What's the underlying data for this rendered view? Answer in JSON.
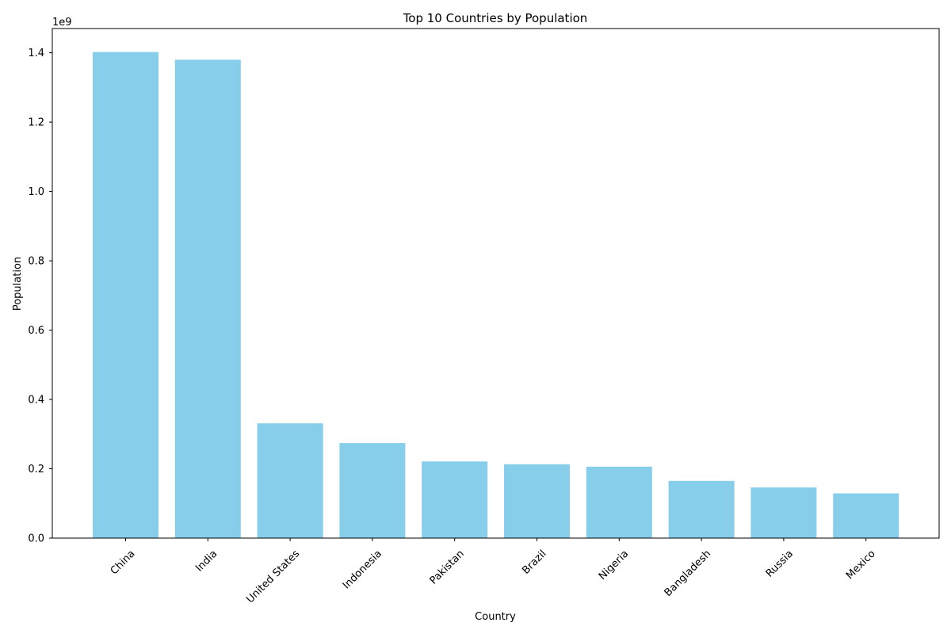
{
  "chart_data": {
    "type": "bar",
    "title": "Top 10 Countries by Population",
    "xlabel": "Country",
    "ylabel": "Population",
    "y_offset_label": "1e9",
    "y_scale_factor": 1000000000,
    "categories": [
      "China",
      "India",
      "United States",
      "Indonesia",
      "Pakistan",
      "Brazil",
      "Nigeria",
      "Bangladesh",
      "Russia",
      "Mexico"
    ],
    "values": [
      1402000000,
      1380000000,
      331000000,
      274000000,
      221000000,
      213000000,
      206000000,
      165000000,
      146000000,
      129000000
    ],
    "ylim": [
      0,
      1470000000
    ],
    "yticks": [
      0.0,
      0.2,
      0.4,
      0.6,
      0.8,
      1.0,
      1.2,
      1.4
    ],
    "bar_color": "#87ceeb",
    "grid": false,
    "legend": null
  }
}
